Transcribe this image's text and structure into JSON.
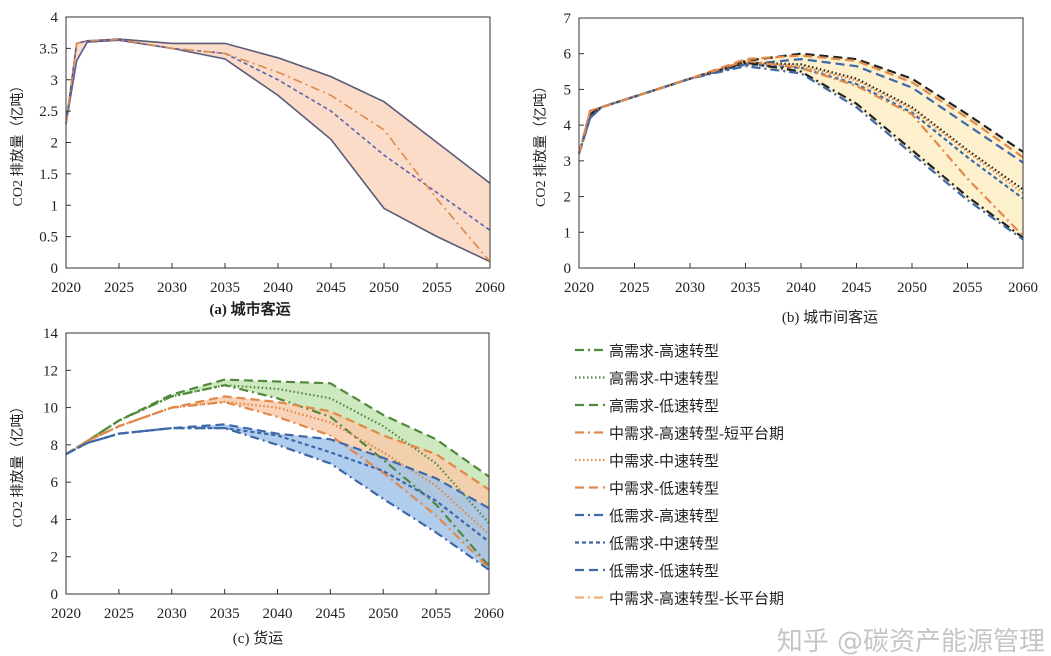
{
  "legend": [
    {
      "label": "高需求-高速转型",
      "color": "#4f8a3c",
      "style": "dash-dot"
    },
    {
      "label": "高需求-中速转型",
      "color": "#4f8a3c",
      "style": "dotted"
    },
    {
      "label": "高需求-低速转型",
      "color": "#4f8a3c",
      "style": "dash"
    },
    {
      "label": "中需求-高速转型-短平台期",
      "color": "#e0894a",
      "style": "dash-dot"
    },
    {
      "label": "中需求-中速转型",
      "color": "#e0894a",
      "style": "dotted"
    },
    {
      "label": "中需求-低速转型",
      "color": "#e0894a",
      "style": "dash"
    },
    {
      "label": "低需求-高速转型",
      "color": "#3f68a8",
      "style": "dash-dot"
    },
    {
      "label": "低需求-中速转型",
      "color": "#3f68a8",
      "style": "short-dash"
    },
    {
      "label": "低需求-低速转型",
      "color": "#3f68a8",
      "style": "dash"
    },
    {
      "label": "中需求-高速转型-长平台期",
      "color": "#f0b070",
      "style": "dash-dot"
    }
  ],
  "watermark": "知乎 @碳资产能源管理",
  "chart_data": [
    {
      "type": "line",
      "title": "(a) 城市客运",
      "ylabel": "CO2 排放量（亿吨）",
      "xlabel": "",
      "xlim": [
        2020,
        2060
      ],
      "ylim": [
        0,
        4
      ],
      "xticks": [
        "2020",
        "2025",
        "2030",
        "2035",
        "2040",
        "2045",
        "2050",
        "2055",
        "2060"
      ],
      "yticks": [
        "0",
        "0.5",
        "1",
        "1.5",
        "2",
        "2.5",
        "3",
        "3.5",
        "4"
      ],
      "x": [
        2020,
        2021,
        2022,
        2025,
        2030,
        2035,
        2040,
        2045,
        2050,
        2055,
        2060
      ],
      "series": [
        {
          "color": "#5a5a7a",
          "style": "solid",
          "values": [
            2.3,
            3.58,
            3.62,
            3.65,
            3.58,
            3.58,
            3.35,
            3.05,
            2.65,
            2.0,
            1.35
          ]
        },
        {
          "color": "#5a5a7a",
          "style": "solid",
          "values": [
            2.3,
            3.3,
            3.6,
            3.63,
            3.5,
            3.33,
            2.75,
            2.05,
            0.95,
            0.5,
            0.1
          ]
        },
        {
          "color": "#5a63b0",
          "style": "short-dash",
          "values": [
            2.3,
            3.3,
            3.6,
            3.63,
            3.5,
            3.42,
            3.0,
            2.5,
            1.8,
            1.2,
            0.6
          ]
        },
        {
          "color": "#e0894a",
          "style": "dash-dot",
          "values": [
            2.3,
            3.58,
            3.62,
            3.64,
            3.5,
            3.42,
            3.12,
            2.75,
            2.2,
            1.1,
            0.1
          ]
        }
      ],
      "bands": [
        {
          "color": "#f9d6c0",
          "series": [
            0,
            1
          ]
        }
      ]
    },
    {
      "type": "line",
      "title": "(b) 城市间客运",
      "ylabel": "CO2 排放量（亿吨）",
      "xlabel": "",
      "xlim": [
        2020,
        2060
      ],
      "ylim": [
        0,
        7
      ],
      "xticks": [
        "2020",
        "2025",
        "2030",
        "2035",
        "2040",
        "2045",
        "2050",
        "2055",
        "2060"
      ],
      "yticks": [
        "0",
        "1",
        "2",
        "3",
        "4",
        "5",
        "6",
        "7"
      ],
      "x": [
        2020,
        2021,
        2022,
        2025,
        2030,
        2035,
        2040,
        2045,
        2050,
        2055,
        2060
      ],
      "series": [
        {
          "name": "高需求-低速转型",
          "color": "#222222",
          "style": "dash",
          "values": [
            3.2,
            4.3,
            4.5,
            4.8,
            5.3,
            5.8,
            6.0,
            5.85,
            5.3,
            4.3,
            3.25
          ]
        },
        {
          "name": "中需求-低速转型",
          "color": "#e0894a",
          "style": "dash",
          "values": [
            3.2,
            4.4,
            4.5,
            4.8,
            5.3,
            5.85,
            5.95,
            5.8,
            5.2,
            4.2,
            3.1
          ]
        },
        {
          "name": "低需求-低速转型",
          "color": "#3f68a8",
          "style": "dash",
          "values": [
            3.2,
            4.2,
            4.5,
            4.8,
            5.3,
            5.7,
            5.85,
            5.65,
            5.05,
            4.0,
            2.95
          ]
        },
        {
          "name": "高需求-中速转型",
          "color": "#222222",
          "style": "dotted",
          "values": [
            3.2,
            4.3,
            4.5,
            4.8,
            5.3,
            5.75,
            5.7,
            5.3,
            4.5,
            3.3,
            2.2
          ]
        },
        {
          "name": "中需求-中速转型",
          "color": "#e0894a",
          "style": "dotted",
          "values": [
            3.2,
            4.4,
            4.5,
            4.8,
            5.3,
            5.75,
            5.65,
            5.25,
            4.45,
            3.25,
            2.1
          ]
        },
        {
          "name": "低需求-中速转型",
          "color": "#3f68a8",
          "style": "short-dash",
          "values": [
            3.2,
            4.2,
            4.5,
            4.8,
            5.3,
            5.7,
            5.6,
            5.15,
            4.35,
            3.1,
            1.95
          ]
        },
        {
          "name": "高需求-高速转型",
          "color": "#222222",
          "style": "dash-dot",
          "values": [
            3.2,
            4.3,
            4.5,
            4.8,
            5.3,
            5.75,
            5.5,
            4.6,
            3.3,
            2.0,
            0.85
          ]
        },
        {
          "name": "低需求-高速转型",
          "color": "#3f68a8",
          "style": "dash-dot",
          "values": [
            3.2,
            4.2,
            4.5,
            4.8,
            5.3,
            5.65,
            5.45,
            4.5,
            3.2,
            1.9,
            0.8
          ]
        },
        {
          "name": "中需求-高速转型-短平台期",
          "color": "#e0894a",
          "style": "dash-dot",
          "values": [
            3.2,
            4.4,
            4.5,
            4.8,
            5.3,
            5.8,
            5.6,
            5.1,
            4.3,
            2.5,
            0.9
          ]
        }
      ],
      "bands": [
        {
          "color": "#fdeec4",
          "series": [
            0,
            1,
            2,
            3,
            4,
            5,
            6,
            7,
            8
          ]
        }
      ]
    },
    {
      "type": "line",
      "title": "(c) 货运",
      "ylabel": "CO2 排放量（亿吨）",
      "xlabel": "",
      "xlim": [
        2020,
        2060
      ],
      "ylim": [
        0,
        14
      ],
      "xticks": [
        "2020",
        "2025",
        "2030",
        "2035",
        "2040",
        "2045",
        "2050",
        "2055",
        "2060"
      ],
      "yticks": [
        "0",
        "2",
        "4",
        "6",
        "8",
        "10",
        "12",
        "14"
      ],
      "x": [
        2020,
        2022,
        2025,
        2030,
        2035,
        2040,
        2045,
        2050,
        2055,
        2060
      ],
      "series": [
        {
          "name": "高需求-低速转型",
          "color": "#4f8a3c",
          "style": "dash",
          "values": [
            7.5,
            8.2,
            9.3,
            10.7,
            11.5,
            11.4,
            11.3,
            9.6,
            8.3,
            6.3
          ]
        },
        {
          "name": "高需求-中速转型",
          "color": "#4f8a3c",
          "style": "dotted",
          "values": [
            7.5,
            8.2,
            9.3,
            10.6,
            11.2,
            11.0,
            10.5,
            9.0,
            7.0,
            3.8
          ]
        },
        {
          "name": "高需求-高速转型",
          "color": "#4f8a3c",
          "style": "dash-dot",
          "values": [
            7.5,
            8.2,
            9.3,
            10.6,
            11.2,
            10.5,
            9.5,
            7.2,
            4.8,
            1.5
          ]
        },
        {
          "name": "中需求-低速转型",
          "color": "#e0894a",
          "style": "dash",
          "values": [
            7.5,
            8.2,
            9.0,
            10.0,
            10.6,
            10.3,
            9.8,
            8.5,
            7.5,
            5.6
          ]
        },
        {
          "name": "中需求-中速转型",
          "color": "#e0894a",
          "style": "dotted",
          "values": [
            7.5,
            8.2,
            9.0,
            10.0,
            10.3,
            10.0,
            9.2,
            7.6,
            5.8,
            3.2
          ]
        },
        {
          "name": "中需求-高速转型-短平台期",
          "color": "#e0894a",
          "style": "dash-dot",
          "values": [
            7.5,
            8.2,
            9.0,
            10.0,
            10.3,
            9.5,
            8.5,
            6.5,
            4.2,
            1.4
          ]
        },
        {
          "name": "低需求-低速转型",
          "color": "#3f68a8",
          "style": "dash",
          "values": [
            7.5,
            8.1,
            8.6,
            8.9,
            9.1,
            8.6,
            8.3,
            7.3,
            6.2,
            4.6
          ]
        },
        {
          "name": "低需求-中速转型",
          "color": "#3f68a8",
          "style": "short-dash",
          "values": [
            7.5,
            8.1,
            8.6,
            8.9,
            8.9,
            8.5,
            7.6,
            6.6,
            5.0,
            2.8
          ]
        },
        {
          "name": "低需求-高速转型",
          "color": "#3f68a8",
          "style": "dash-dot",
          "values": [
            7.5,
            8.1,
            8.6,
            8.9,
            8.9,
            8.0,
            7.0,
            5.1,
            3.3,
            1.3
          ]
        }
      ],
      "bands": [
        {
          "color": "#c6e4b4",
          "series": [
            0,
            1,
            2
          ]
        },
        {
          "color": "#f8cbaa",
          "series": [
            3,
            4,
            5
          ]
        },
        {
          "color": "#a3c4ea",
          "series": [
            6,
            7,
            8
          ]
        }
      ]
    }
  ]
}
